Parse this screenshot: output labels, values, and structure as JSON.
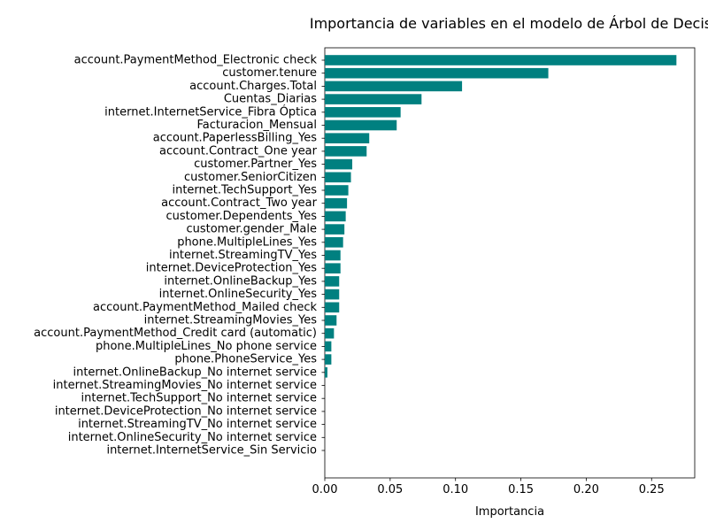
{
  "chart_data": {
    "type": "bar",
    "orientation": "horizontal",
    "title": "Importancia de variables en el modelo de Árbol de Decis",
    "xlabel": "Importancia",
    "ylabel": "",
    "xlim": [
      0,
      0.283
    ],
    "xticks": [
      0.0,
      0.05,
      0.1,
      0.15,
      0.2,
      0.25
    ],
    "xtick_labels": [
      "0.00",
      "0.05",
      "0.10",
      "0.15",
      "0.20",
      "0.25"
    ],
    "bar_color": "#008080",
    "grid": false,
    "categories": [
      "account.PaymentMethod_Electronic check",
      "customer.tenure",
      "account.Charges.Total",
      "Cuentas_Diarias",
      "internet.InternetService_Fibra Óptica",
      "Facturacion_Mensual",
      "account.PaperlessBilling_Yes",
      "account.Contract_One year",
      "customer.Partner_Yes",
      "customer.SeniorCitizen",
      "internet.TechSupport_Yes",
      "account.Contract_Two year",
      "customer.Dependents_Yes",
      "customer.gender_Male",
      "phone.MultipleLines_Yes",
      "internet.StreamingTV_Yes",
      "internet.DeviceProtection_Yes",
      "internet.OnlineBackup_Yes",
      "internet.OnlineSecurity_Yes",
      "account.PaymentMethod_Mailed check",
      "internet.StreamingMovies_Yes",
      "account.PaymentMethod_Credit card (automatic)",
      "phone.MultipleLines_No phone service",
      "phone.PhoneService_Yes",
      "internet.OnlineBackup_No internet service",
      "internet.StreamingMovies_No internet service",
      "internet.TechSupport_No internet service",
      "internet.DeviceProtection_No internet service",
      "internet.StreamingTV_No internet service",
      "internet.OnlineSecurity_No internet service",
      "internet.InternetService_Sin Servicio"
    ],
    "values": [
      0.269,
      0.171,
      0.105,
      0.074,
      0.058,
      0.055,
      0.034,
      0.032,
      0.021,
      0.02,
      0.018,
      0.017,
      0.016,
      0.015,
      0.014,
      0.012,
      0.012,
      0.011,
      0.011,
      0.011,
      0.009,
      0.007,
      0.005,
      0.005,
      0.002,
      0.0,
      0.0,
      0.0,
      0.0,
      0.0,
      0.0
    ]
  }
}
